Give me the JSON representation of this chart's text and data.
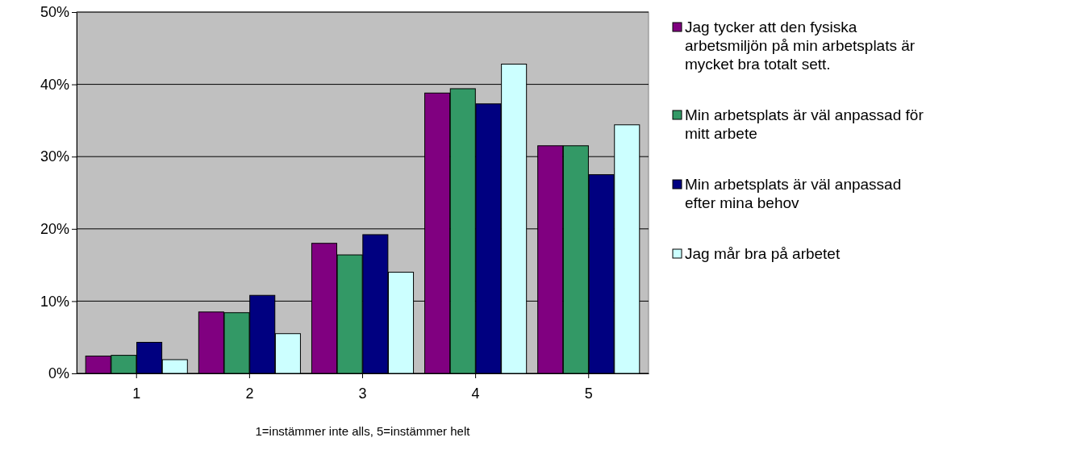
{
  "chart_data": {
    "type": "bar",
    "categories": [
      "1",
      "2",
      "3",
      "4",
      "5"
    ],
    "xlabel": "1=instämmer inte alls, 5=instämmer helt",
    "series": [
      {
        "name": "Jag tycker att den fysiska arbetsmiljön på min arbetsplats är mycket bra totalt sett.",
        "color": "#800080",
        "values": [
          2.4,
          8.5,
          18,
          38.8,
          31.5
        ]
      },
      {
        "name": "Min arbetsplats är väl anpassad för mitt arbete",
        "color": "#339966",
        "values": [
          2.5,
          8.4,
          16.4,
          39.4,
          31.5
        ]
      },
      {
        "name": "Min arbetsplats är väl anpassad efter mina behov",
        "color": "#000080",
        "values": [
          4.3,
          10.8,
          19.2,
          37.3,
          27.5
        ]
      },
      {
        "name": "Jag mår bra på arbetet",
        "color": "#ccffff",
        "values": [
          1.9,
          5.5,
          14,
          42.8,
          34.4
        ]
      }
    ],
    "ylim": [
      0,
      50
    ],
    "yticks": [
      {
        "value": 0,
        "label": "0%"
      },
      {
        "value": 10,
        "label": "10%"
      },
      {
        "value": 20,
        "label": "20%"
      },
      {
        "value": 30,
        "label": "30%"
      },
      {
        "value": 40,
        "label": "40%"
      },
      {
        "value": 50,
        "label": "50%"
      }
    ],
    "grid": "y",
    "legend": "right"
  }
}
